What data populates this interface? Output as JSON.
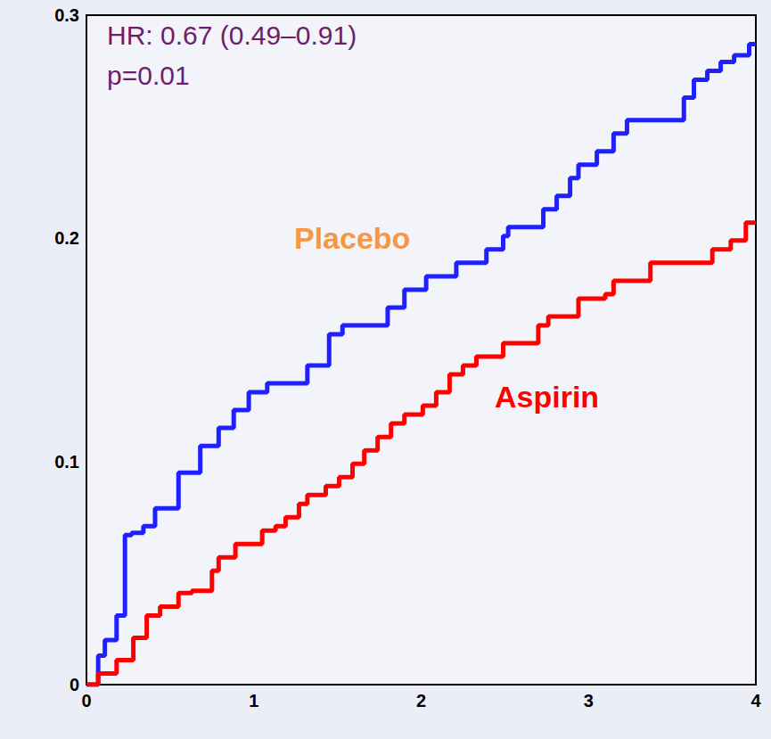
{
  "chart_data": {
    "type": "line",
    "annotations": [
      "HR: 0.67 (0.49–0.91)",
      "p=0.01"
    ],
    "xlim": [
      0,
      4
    ],
    "xticks": [
      0,
      1,
      2,
      3,
      4
    ],
    "ylim": [
      0,
      0.3
    ],
    "yticks": [
      0,
      0.1,
      0.2,
      0.3
    ],
    "grid": false,
    "line_style": "step",
    "series": [
      {
        "name": "Placebo",
        "color": "#1f1fff",
        "x": [
          0,
          0.07,
          0.11,
          0.18,
          0.23,
          0.27,
          0.34,
          0.41,
          0.55,
          0.68,
          0.79,
          0.88,
          0.97,
          1.08,
          1.32,
          1.45,
          1.53,
          1.8,
          1.9,
          2.03,
          2.21,
          2.39,
          2.49,
          2.52,
          2.73,
          2.81,
          2.89,
          2.94,
          3.05,
          3.15,
          3.23,
          3.57,
          3.63,
          3.71,
          3.79,
          3.87,
          3.96,
          4.0
        ],
        "values": [
          0,
          0.013,
          0.02,
          0.031,
          0.067,
          0.068,
          0.071,
          0.079,
          0.095,
          0.107,
          0.115,
          0.123,
          0.131,
          0.135,
          0.143,
          0.157,
          0.161,
          0.169,
          0.177,
          0.183,
          0.189,
          0.195,
          0.201,
          0.205,
          0.213,
          0.219,
          0.227,
          0.233,
          0.239,
          0.247,
          0.253,
          0.263,
          0.271,
          0.275,
          0.279,
          0.282,
          0.287,
          0.287
        ]
      },
      {
        "name": "Aspirin",
        "color": "#ff0000",
        "x": [
          0,
          0.07,
          0.18,
          0.28,
          0.36,
          0.44,
          0.55,
          0.63,
          0.75,
          0.79,
          0.89,
          1.05,
          1.13,
          1.19,
          1.27,
          1.32,
          1.43,
          1.51,
          1.59,
          1.66,
          1.74,
          1.82,
          1.9,
          2.01,
          2.09,
          2.17,
          2.25,
          2.33,
          2.49,
          2.7,
          2.76,
          2.94,
          3.1,
          3.15,
          3.37,
          3.74,
          3.85,
          3.94,
          4.0
        ],
        "values": [
          0,
          0.005,
          0.011,
          0.021,
          0.031,
          0.035,
          0.041,
          0.042,
          0.051,
          0.057,
          0.063,
          0.069,
          0.071,
          0.075,
          0.081,
          0.085,
          0.089,
          0.093,
          0.099,
          0.105,
          0.111,
          0.117,
          0.121,
          0.125,
          0.131,
          0.139,
          0.143,
          0.147,
          0.153,
          0.161,
          0.165,
          0.173,
          0.175,
          0.181,
          0.189,
          0.195,
          0.199,
          0.207,
          0.207
        ]
      }
    ]
  }
}
